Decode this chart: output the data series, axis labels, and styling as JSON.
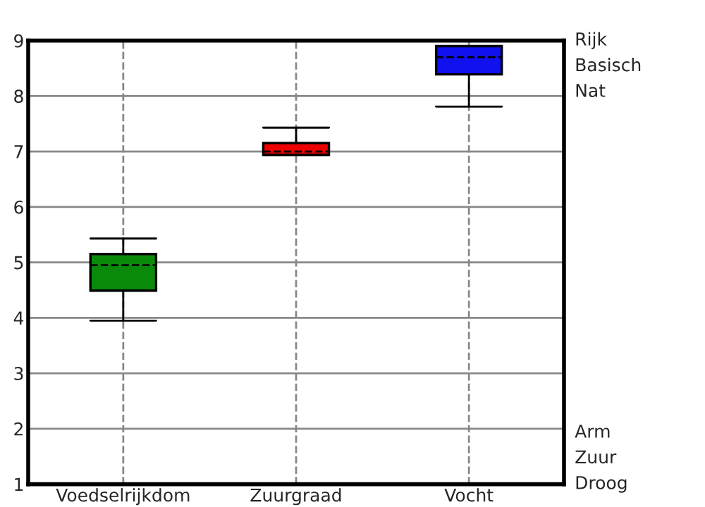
{
  "chart_data": {
    "type": "box",
    "categories": [
      "Voedselrijkdom",
      "Zuurgraad",
      "Vocht"
    ],
    "boxes": [
      {
        "low": 3.95,
        "q1": 4.49,
        "median": 4.95,
        "q3": 5.15,
        "high": 5.43
      },
      {
        "low": 6.93,
        "q1": 6.94,
        "median": 7.0,
        "q3": 7.15,
        "high": 7.43
      },
      {
        "low": 7.81,
        "q1": 8.39,
        "median": 8.7,
        "q3": 8.9,
        "high": 8.9
      }
    ],
    "colors": [
      "#0a8a0a",
      "#ee0000",
      "#1010f0"
    ],
    "ylim": [
      1,
      9
    ],
    "yticks": [
      1,
      2,
      3,
      4,
      5,
      6,
      7,
      8,
      9
    ],
    "grid": true,
    "annotations": [
      "Rijk",
      "Basisch",
      "Nat",
      "Arm",
      "Zuur",
      "Droog"
    ]
  }
}
